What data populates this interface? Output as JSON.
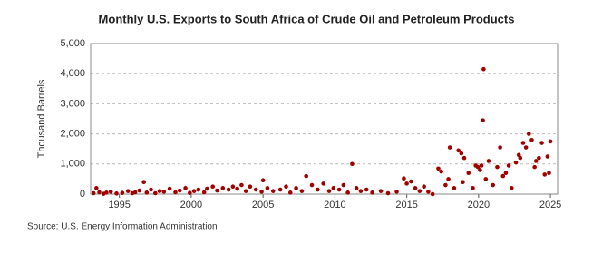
{
  "chart_data": {
    "type": "scatter",
    "title": "Monthly U.S. Exports to South Africa of Crude Oil and Petroleum Products",
    "y_label": "Thousand Barrels",
    "source": "Source: U.S. Energy Information Administration",
    "color": "#a00000",
    "grid": true,
    "xlim": [
      1993,
      2025.5
    ],
    "ylim": [
      0,
      5000
    ],
    "xticks": [
      1995,
      2000,
      2005,
      2010,
      2015,
      2020,
      2025
    ],
    "yticks": [
      0,
      {
        "value": 1000,
        "label": "1,000"
      },
      {
        "value": 2000,
        "label": "2,000"
      },
      {
        "value": 3000,
        "label": "3,000"
      },
      {
        "value": 4000,
        "label": "4,000"
      },
      {
        "value": 5000,
        "label": "5,000"
      }
    ],
    "x": [
      1993.2,
      1993.4,
      1993.6,
      1993.9,
      1994.1,
      1994.4,
      1994.8,
      1995.2,
      1995.6,
      1995.9,
      1996.1,
      1996.4,
      1996.7,
      1996.9,
      1997.2,
      1997.5,
      1997.8,
      1998.1,
      1998.5,
      1998.9,
      1999.2,
      1999.6,
      1999.9,
      2000.2,
      2000.5,
      2000.9,
      2001.1,
      2001.5,
      2001.8,
      2002.2,
      2002.6,
      2002.9,
      2003.2,
      2003.5,
      2003.8,
      2004.1,
      2004.5,
      2004.9,
      2005.0,
      2005.3,
      2005.7,
      2006.2,
      2006.6,
      2006.9,
      2007.3,
      2007.7,
      2008.0,
      2008.4,
      2008.8,
      2009.2,
      2009.6,
      2009.9,
      2010.3,
      2010.6,
      2010.9,
      2011.2,
      2011.5,
      2011.8,
      2012.2,
      2012.6,
      2013.2,
      2013.7,
      2014.3,
      2014.8,
      2015.0,
      2015.3,
      2015.6,
      2015.9,
      2016.2,
      2016.5,
      2016.8,
      2017.2,
      2017.4,
      2017.7,
      2017.9,
      2018.0,
      2018.3,
      2018.6,
      2018.8,
      2018.9,
      2019.0,
      2019.3,
      2019.6,
      2019.8,
      2019.95,
      2020.1,
      2020.2,
      2020.3,
      2020.35,
      2020.5,
      2020.7,
      2021.0,
      2021.3,
      2021.5,
      2021.7,
      2021.9,
      2022.1,
      2022.3,
      2022.6,
      2022.8,
      2022.9,
      2023.1,
      2023.3,
      2023.5,
      2023.7,
      2023.9,
      2024.0,
      2024.2,
      2024.4,
      2024.6,
      2024.8,
      2024.9,
      2025.0
    ],
    "values": [
      30,
      200,
      60,
      10,
      50,
      80,
      20,
      40,
      100,
      30,
      60,
      120,
      400,
      50,
      150,
      30,
      100,
      80,
      180,
      60,
      120,
      200,
      40,
      100,
      150,
      60,
      180,
      250,
      120,
      200,
      150,
      250,
      180,
      300,
      100,
      250,
      150,
      80,
      460,
      200,
      100,
      150,
      250,
      50,
      200,
      100,
      600,
      300,
      150,
      350,
      100,
      200,
      150,
      300,
      50,
      1000,
      200,
      100,
      150,
      50,
      100,
      30,
      80,
      520,
      350,
      420,
      200,
      100,
      250,
      80,
      0,
      850,
      750,
      300,
      500,
      1550,
      200,
      1450,
      1350,
      400,
      1200,
      700,
      200,
      950,
      900,
      800,
      950,
      2450,
      4150,
      500,
      1100,
      300,
      900,
      1550,
      600,
      700,
      950,
      200,
      1050,
      1300,
      1200,
      1700,
      1550,
      2000,
      1800,
      900,
      1100,
      1200,
      1700,
      650,
      1250,
      700,
      1750
    ]
  }
}
